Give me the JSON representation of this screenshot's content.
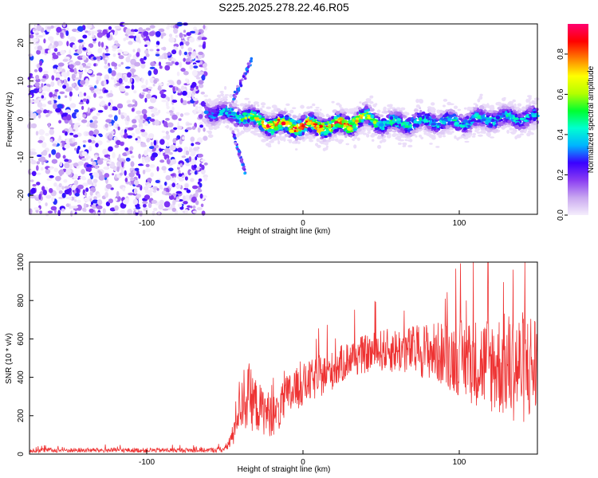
{
  "title": "S225.2025.278.22.46.R05",
  "chart_data": [
    {
      "type": "heatmap",
      "name": "spectrogram",
      "xlabel": "Height of straight line (km)",
      "ylabel": "Frequency (Hz)",
      "xlim": [
        -175,
        150
      ],
      "ylim": [
        -25,
        25
      ],
      "xticks": [
        -100,
        0,
        100
      ],
      "xtick_labels": [
        "-100",
        "0",
        "100"
      ],
      "yticks": [
        -20,
        -10,
        0,
        10,
        20
      ],
      "ytick_labels": [
        "-20",
        "-10",
        "0",
        "10",
        "20"
      ],
      "noise_region_end_km": -62,
      "ridge": {
        "x": [
          -62,
          -40,
          -20,
          0,
          20,
          30,
          40,
          50,
          60,
          80,
          100,
          120,
          150
        ],
        "y": [
          2,
          1,
          -1.5,
          -1.8,
          -1.8,
          -1.2,
          0.5,
          -1.0,
          -1.2,
          -0.5,
          -0.8,
          0.2,
          0.5
        ],
        "peak_amplitude": [
          0.3,
          0.5,
          0.9,
          0.9,
          0.85,
          0.85,
          0.7,
          0.55,
          0.5,
          0.45,
          0.45,
          0.45,
          0.4
        ]
      },
      "side_streaks": [
        {
          "x": [
            -45,
            -33
          ],
          "y": [
            5,
            15
          ]
        },
        {
          "x": [
            -45,
            -37
          ],
          "y": [
            -3,
            -14
          ]
        }
      ],
      "colorbar": {
        "label": "Normalized spectral amplitude",
        "ticks": [
          0.0,
          0.2,
          0.4,
          0.6,
          0.8
        ],
        "tick_labels": [
          "0.0",
          "0.2",
          "0.4",
          "0.6",
          "0.8"
        ],
        "range": [
          0.0,
          0.95
        ],
        "colormap": [
          "#f5eefc",
          "#c9a8f0",
          "#8b3df2",
          "#3a00ff",
          "#00b4ff",
          "#00ffd0",
          "#00ff30",
          "#b4ff00",
          "#ffff00",
          "#ff8000",
          "#ff0000",
          "#ff0070"
        ]
      }
    },
    {
      "type": "line",
      "name": "snr",
      "xlabel": "Height of straight line (km)",
      "ylabel": "SNR (10 * v/v)",
      "xlim": [
        -175,
        150
      ],
      "ylim": [
        0,
        1000
      ],
      "xticks": [
        -100,
        0,
        100
      ],
      "xtick_labels": [
        "-100",
        "0",
        "100"
      ],
      "yticks": [
        0,
        200,
        400,
        600,
        800,
        1000
      ],
      "ytick_labels": [
        "0",
        "200",
        "400",
        "600",
        "800",
        "1000"
      ],
      "color": "#ee3333",
      "envelope": {
        "x": [
          -175,
          -60,
          -50,
          -45,
          -42,
          -38,
          -33,
          -28,
          -22,
          -17,
          -10,
          0,
          10,
          20,
          30,
          40,
          50,
          60,
          70,
          80,
          90,
          100,
          110,
          120,
          130,
          140,
          150
        ],
        "mean": [
          20,
          20,
          25,
          90,
          230,
          300,
          280,
          240,
          210,
          200,
          300,
          360,
          400,
          440,
          500,
          520,
          540,
          540,
          540,
          540,
          520,
          500,
          480,
          470,
          460,
          450,
          460
        ],
        "spread": [
          12,
          12,
          15,
          60,
          120,
          180,
          160,
          130,
          120,
          100,
          120,
          110,
          110,
          100,
          100,
          100,
          110,
          120,
          130,
          150,
          170,
          200,
          230,
          260,
          280,
          300,
          300
        ]
      }
    }
  ]
}
